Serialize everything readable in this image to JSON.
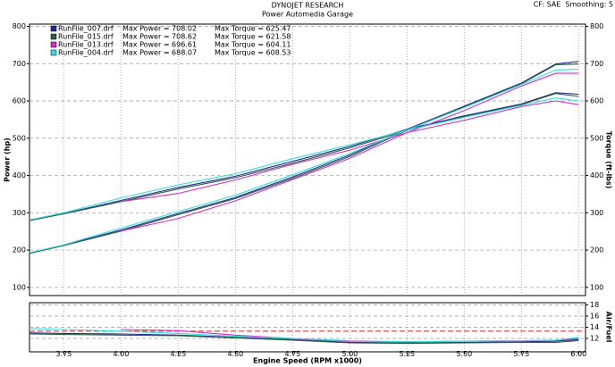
{
  "chart_data": [
    {
      "type": "line",
      "title": "DYNOJET RESEARCH",
      "subtitle": "Power Automedia Garage",
      "settings_label": "CF: SAE  Smoothing: 5",
      "ylabel": "Power (hp)",
      "y2label": "Torque (ft-lbs)",
      "x": [
        3.6,
        3.75,
        4.0,
        4.25,
        4.5,
        4.75,
        5.0,
        5.25,
        5.5,
        5.75,
        5.9,
        6.0
      ],
      "xlim": [
        3.6,
        6.03
      ],
      "ylim": [
        78,
        806
      ],
      "yticks": [
        100,
        200,
        300,
        400,
        500,
        600,
        700,
        800
      ],
      "y2lim": [
        78,
        806
      ],
      "y2ticks": [
        100,
        200,
        300,
        400,
        500,
        600,
        700,
        800
      ],
      "grid": true,
      "series": [
        {
          "name": "RunFile_007.drf",
          "power_label": "Max Power = 708.02",
          "torque_label": "Max Torque = 625.47",
          "color": "#1f2a8c",
          "values": [
            192,
            213,
            254,
            298,
            341,
            396,
            455,
            524,
            586,
            648,
            699,
            706
          ],
          "torque": [
            280,
            298,
            333,
            368,
            398,
            438,
            478,
            524,
            560,
            592,
            622,
            618
          ]
        },
        {
          "name": "RunFile_015.drf",
          "power_label": "Max Power = 708.62",
          "torque_label": "Max Torque = 621.58",
          "color": "#2f5f3f",
          "values": [
            191,
            212,
            251,
            295,
            338,
            392,
            451,
            521,
            584,
            646,
            697,
            699
          ],
          "torque": [
            279,
            297,
            330,
            364,
            394,
            433,
            474,
            521,
            558,
            590,
            620,
            612
          ]
        },
        {
          "name": "RunFile_013.drf",
          "power_label": "Max Power = 696.61",
          "torque_label": "Max Torque = 604.11",
          "color": "#d030c8",
          "values": [
            null,
            null,
            251,
            285,
            332,
            389,
            446,
            515,
            574,
            640,
            674,
            674
          ],
          "torque": [
            null,
            null,
            330,
            352,
            388,
            430,
            468,
            515,
            548,
            585,
            600,
            590
          ]
        },
        {
          "name": "RunFile_004.drf",
          "power_label": "Max Power = 688.07",
          "torque_label": "Max Torque = 608.53",
          "color": "#30dede",
          "values": [
            193,
            214,
            259,
            303,
            347,
            402,
            459,
            522,
            582,
            644,
            683,
            685
          ],
          "torque": [
            281,
            300,
            340,
            375,
            405,
            445,
            482,
            522,
            556,
            588,
            608,
            600
          ]
        }
      ]
    },
    {
      "type": "line",
      "y2label": "Air/Fuel",
      "xlabel": "Engine Speed (RPM x1000)",
      "x": [
        3.6,
        3.75,
        4.0,
        4.25,
        4.5,
        4.75,
        5.0,
        5.25,
        5.5,
        5.75,
        5.9,
        6.0
      ],
      "xlim": [
        3.6,
        6.03
      ],
      "xticks": [
        {
          "value": 3.75,
          "label": "3.75"
        },
        {
          "value": 4.0,
          "label": "4.00"
        },
        {
          "value": 4.25,
          "label": "4.25"
        },
        {
          "value": 4.5,
          "label": "4.50"
        },
        {
          "value": 4.75,
          "label": "4.75"
        },
        {
          "value": 5.0,
          "label": "5.00"
        },
        {
          "value": 5.25,
          "label": "5.25"
        },
        {
          "value": 5.5,
          "label": "5.50"
        },
        {
          "value": 5.75,
          "label": "5.75"
        },
        {
          "value": 6.0,
          "label": "6.00"
        }
      ],
      "y2lim": [
        9.6,
        18.4
      ],
      "y2ticks": [
        12,
        14,
        16,
        18
      ],
      "grid": true,
      "reference_line": 13.3,
      "reference_color": "#d02020",
      "series": [
        {
          "color": "#1f2a8c",
          "values": [
            13.0,
            12.9,
            12.8,
            12.6,
            12.2,
            11.8,
            11.3,
            11.2,
            11.3,
            11.4,
            11.5,
            11.8
          ]
        },
        {
          "color": "#2f5f3f",
          "values": [
            12.8,
            12.7,
            12.6,
            12.5,
            12.1,
            11.7,
            11.2,
            11.1,
            11.2,
            11.3,
            11.3,
            11.6
          ]
        },
        {
          "color": "#d030c8",
          "values": [
            null,
            null,
            13.6,
            13.4,
            12.6,
            12.0,
            11.5,
            11.4,
            11.5,
            11.6,
            11.7,
            12.0
          ]
        },
        {
          "color": "#30dede",
          "values": [
            13.8,
            13.6,
            13.3,
            12.9,
            12.4,
            12.0,
            11.6,
            11.4,
            11.5,
            11.6,
            11.7,
            12.2
          ]
        }
      ]
    }
  ]
}
